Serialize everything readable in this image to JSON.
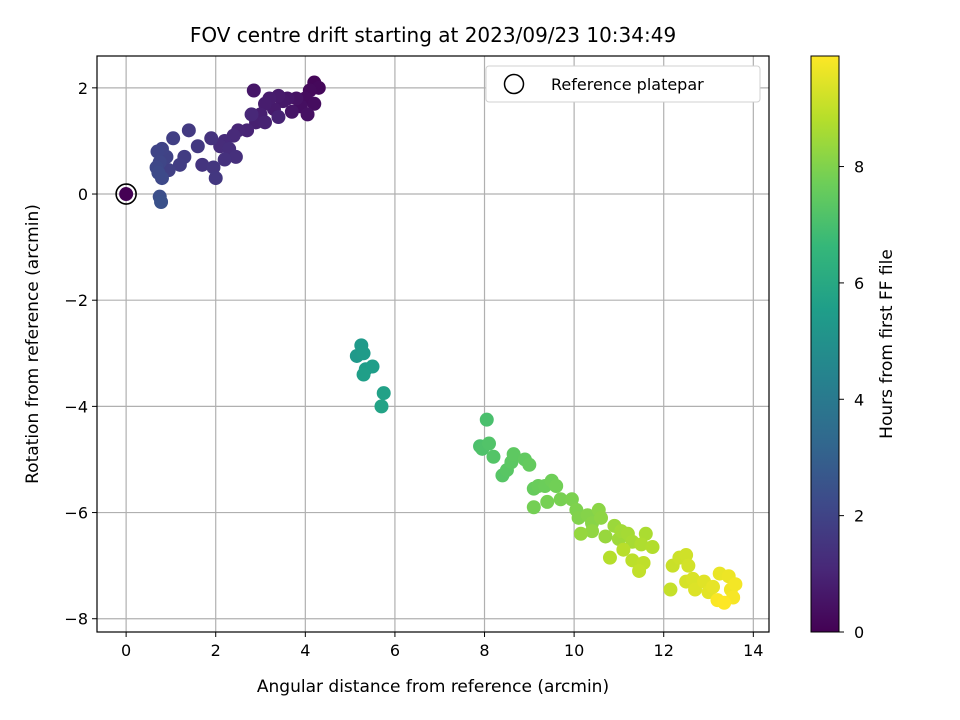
{
  "chart_data": {
    "type": "scatter",
    "title": "FOV centre drift starting at 2023/09/23 10:34:49",
    "xlabel": "Angular distance from reference (arcmin)",
    "ylabel": "Rotation from reference (arcmin)",
    "xlim": [
      -0.65,
      14.35
    ],
    "ylim": [
      -8.25,
      2.6
    ],
    "xticks": [
      0,
      2,
      4,
      6,
      8,
      10,
      12,
      14
    ],
    "yticks": [
      -8,
      -6,
      -4,
      -2,
      0,
      2
    ],
    "grid": true,
    "legend": {
      "position": "top-right",
      "entries": [
        "Reference platepar"
      ]
    },
    "reference_point": {
      "x": 0,
      "y": 0
    },
    "colorbar": {
      "label": "Hours from first FF file",
      "colormap": "viridis",
      "range": [
        0,
        9.9
      ],
      "ticks": [
        0,
        2,
        4,
        6,
        8
      ]
    },
    "colormap_stops": [
      "#440154",
      "#482878",
      "#3e4989",
      "#31688e",
      "#26828e",
      "#1f9e89",
      "#35b779",
      "#6ece58",
      "#b5de2b",
      "#fde725"
    ],
    "points": [
      {
        "x": 4.2,
        "y": 2.1,
        "t": 0.15
      },
      {
        "x": 4.3,
        "y": 2.0,
        "t": 0.2
      },
      {
        "x": 4.1,
        "y": 1.95,
        "t": 0.25
      },
      {
        "x": 4.0,
        "y": 1.8,
        "t": 0.3
      },
      {
        "x": 4.2,
        "y": 1.7,
        "t": 0.35
      },
      {
        "x": 3.9,
        "y": 1.65,
        "t": 0.4
      },
      {
        "x": 4.05,
        "y": 1.5,
        "t": 0.45
      },
      {
        "x": 3.8,
        "y": 1.8,
        "t": 0.5
      },
      {
        "x": 3.7,
        "y": 1.55,
        "t": 0.55
      },
      {
        "x": 3.6,
        "y": 1.8,
        "t": 0.6
      },
      {
        "x": 3.5,
        "y": 1.75,
        "t": 0.65
      },
      {
        "x": 3.4,
        "y": 1.85,
        "t": 0.7
      },
      {
        "x": 3.3,
        "y": 1.6,
        "t": 0.72
      },
      {
        "x": 3.2,
        "y": 1.8,
        "t": 0.75
      },
      {
        "x": 3.1,
        "y": 1.7,
        "t": 0.8
      },
      {
        "x": 3.0,
        "y": 1.5,
        "t": 0.85
      },
      {
        "x": 2.9,
        "y": 1.35,
        "t": 0.9
      },
      {
        "x": 3.1,
        "y": 1.35,
        "t": 0.92
      },
      {
        "x": 3.4,
        "y": 1.45,
        "t": 0.95
      },
      {
        "x": 2.85,
        "y": 1.95,
        "t": 0.6
      },
      {
        "x": 2.7,
        "y": 1.2,
        "t": 1.0
      },
      {
        "x": 2.5,
        "y": 1.2,
        "t": 1.05
      },
      {
        "x": 2.8,
        "y": 1.5,
        "t": 1.1
      },
      {
        "x": 2.4,
        "y": 1.1,
        "t": 1.15
      },
      {
        "x": 2.2,
        "y": 1.0,
        "t": 1.2
      },
      {
        "x": 2.1,
        "y": 0.9,
        "t": 1.25
      },
      {
        "x": 2.3,
        "y": 0.85,
        "t": 1.3
      },
      {
        "x": 2.45,
        "y": 0.7,
        "t": 1.35
      },
      {
        "x": 2.2,
        "y": 0.65,
        "t": 1.4
      },
      {
        "x": 1.9,
        "y": 1.05,
        "t": 1.45
      },
      {
        "x": 1.7,
        "y": 0.55,
        "t": 1.5
      },
      {
        "x": 1.95,
        "y": 0.5,
        "t": 1.55
      },
      {
        "x": 2.0,
        "y": 0.3,
        "t": 1.6
      },
      {
        "x": 1.6,
        "y": 0.9,
        "t": 1.65
      },
      {
        "x": 1.4,
        "y": 1.2,
        "t": 1.7
      },
      {
        "x": 1.3,
        "y": 0.7,
        "t": 1.75
      },
      {
        "x": 1.2,
        "y": 0.55,
        "t": 1.8
      },
      {
        "x": 1.05,
        "y": 1.05,
        "t": 1.85
      },
      {
        "x": 0.95,
        "y": 0.45,
        "t": 1.9
      },
      {
        "x": 0.9,
        "y": 0.7,
        "t": 1.95
      },
      {
        "x": 0.8,
        "y": 0.85,
        "t": 2.0
      },
      {
        "x": 0.7,
        "y": 0.8,
        "t": 2.05
      },
      {
        "x": 0.75,
        "y": 0.6,
        "t": 2.1
      },
      {
        "x": 0.68,
        "y": 0.5,
        "t": 2.15
      },
      {
        "x": 0.8,
        "y": 0.3,
        "t": 2.2
      },
      {
        "x": 0.72,
        "y": 0.4,
        "t": 2.25
      },
      {
        "x": 0.75,
        "y": -0.05,
        "t": 2.4
      },
      {
        "x": 0.78,
        "y": -0.15,
        "t": 2.5
      },
      {
        "x": 5.15,
        "y": -3.05,
        "t": 5.3
      },
      {
        "x": 5.25,
        "y": -2.85,
        "t": 5.35
      },
      {
        "x": 5.3,
        "y": -3.0,
        "t": 5.4
      },
      {
        "x": 5.35,
        "y": -3.3,
        "t": 5.45
      },
      {
        "x": 5.5,
        "y": -3.25,
        "t": 5.5
      },
      {
        "x": 5.3,
        "y": -3.4,
        "t": 5.55
      },
      {
        "x": 5.75,
        "y": -3.75,
        "t": 5.65
      },
      {
        "x": 5.7,
        "y": -4.0,
        "t": 5.7
      },
      {
        "x": 8.05,
        "y": -4.25,
        "t": 7.0
      },
      {
        "x": 7.9,
        "y": -4.75,
        "t": 7.05
      },
      {
        "x": 7.95,
        "y": -4.8,
        "t": 7.1
      },
      {
        "x": 8.1,
        "y": -4.7,
        "t": 7.15
      },
      {
        "x": 8.2,
        "y": -4.95,
        "t": 7.2
      },
      {
        "x": 8.4,
        "y": -5.3,
        "t": 7.25
      },
      {
        "x": 8.5,
        "y": -5.2,
        "t": 7.3
      },
      {
        "x": 8.6,
        "y": -5.05,
        "t": 7.35
      },
      {
        "x": 8.65,
        "y": -4.9,
        "t": 7.4
      },
      {
        "x": 8.9,
        "y": -5.0,
        "t": 7.45
      },
      {
        "x": 9.0,
        "y": -5.1,
        "t": 7.5
      },
      {
        "x": 9.1,
        "y": -5.55,
        "t": 7.55
      },
      {
        "x": 9.2,
        "y": -5.5,
        "t": 7.6
      },
      {
        "x": 9.35,
        "y": -5.5,
        "t": 7.65
      },
      {
        "x": 9.5,
        "y": -5.4,
        "t": 7.7
      },
      {
        "x": 9.6,
        "y": -5.5,
        "t": 7.75
      },
      {
        "x": 9.1,
        "y": -5.9,
        "t": 7.8
      },
      {
        "x": 9.4,
        "y": -5.8,
        "t": 7.82
      },
      {
        "x": 9.7,
        "y": -5.75,
        "t": 7.85
      },
      {
        "x": 9.95,
        "y": -5.75,
        "t": 7.9
      },
      {
        "x": 10.05,
        "y": -5.95,
        "t": 7.95
      },
      {
        "x": 10.1,
        "y": -6.1,
        "t": 8.0
      },
      {
        "x": 10.3,
        "y": -6.05,
        "t": 8.05
      },
      {
        "x": 10.4,
        "y": -6.2,
        "t": 8.1
      },
      {
        "x": 10.55,
        "y": -5.95,
        "t": 8.15
      },
      {
        "x": 10.6,
        "y": -6.1,
        "t": 8.2
      },
      {
        "x": 10.4,
        "y": -6.35,
        "t": 8.25
      },
      {
        "x": 10.15,
        "y": -6.4,
        "t": 8.3
      },
      {
        "x": 10.7,
        "y": -6.45,
        "t": 8.35
      },
      {
        "x": 10.9,
        "y": -6.25,
        "t": 8.4
      },
      {
        "x": 11.0,
        "y": -6.5,
        "t": 8.45
      },
      {
        "x": 11.05,
        "y": -6.35,
        "t": 8.5
      },
      {
        "x": 11.2,
        "y": -6.4,
        "t": 8.55
      },
      {
        "x": 11.3,
        "y": -6.55,
        "t": 8.6
      },
      {
        "x": 11.6,
        "y": -6.4,
        "t": 8.65
      },
      {
        "x": 11.5,
        "y": -6.6,
        "t": 8.7
      },
      {
        "x": 11.75,
        "y": -6.65,
        "t": 8.75
      },
      {
        "x": 10.8,
        "y": -6.85,
        "t": 8.8
      },
      {
        "x": 11.1,
        "y": -6.7,
        "t": 8.85
      },
      {
        "x": 11.3,
        "y": -6.9,
        "t": 8.9
      },
      {
        "x": 11.55,
        "y": -6.95,
        "t": 8.95
      },
      {
        "x": 11.45,
        "y": -7.1,
        "t": 9.0
      },
      {
        "x": 12.2,
        "y": -7.0,
        "t": 9.1
      },
      {
        "x": 12.35,
        "y": -6.85,
        "t": 9.15
      },
      {
        "x": 12.5,
        "y": -6.8,
        "t": 9.2
      },
      {
        "x": 12.55,
        "y": -7.0,
        "t": 9.25
      },
      {
        "x": 12.5,
        "y": -7.3,
        "t": 9.3
      },
      {
        "x": 12.65,
        "y": -7.25,
        "t": 9.35
      },
      {
        "x": 12.7,
        "y": -7.45,
        "t": 9.4
      },
      {
        "x": 12.9,
        "y": -7.3,
        "t": 9.45
      },
      {
        "x": 13.0,
        "y": -7.5,
        "t": 9.5
      },
      {
        "x": 13.1,
        "y": -7.4,
        "t": 9.55
      },
      {
        "x": 13.25,
        "y": -7.15,
        "t": 9.6
      },
      {
        "x": 13.45,
        "y": -7.2,
        "t": 9.65
      },
      {
        "x": 13.5,
        "y": -7.45,
        "t": 9.7
      },
      {
        "x": 13.6,
        "y": -7.35,
        "t": 9.75
      },
      {
        "x": 13.55,
        "y": -7.6,
        "t": 9.8
      },
      {
        "x": 13.2,
        "y": -7.65,
        "t": 9.85
      },
      {
        "x": 13.35,
        "y": -7.7,
        "t": 9.9
      },
      {
        "x": 12.15,
        "y": -7.45,
        "t": 9.05
      }
    ]
  }
}
